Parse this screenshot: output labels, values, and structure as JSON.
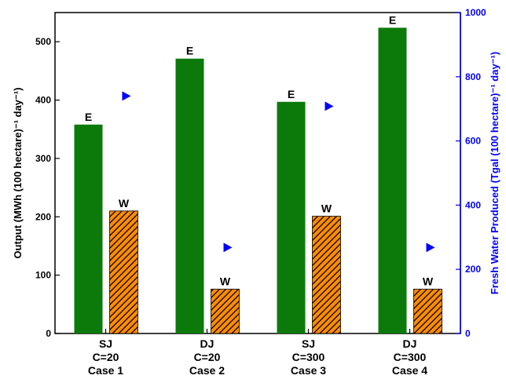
{
  "chart_data": {
    "type": "bar",
    "categories": [
      [
        "SJ",
        "C=20",
        "Case 1"
      ],
      [
        "DJ",
        "C=20",
        "Case 2"
      ],
      [
        "SJ",
        "C=300",
        "Case 3"
      ],
      [
        "DJ",
        "C=300",
        "Case 4"
      ]
    ],
    "series": [
      {
        "label": "E",
        "axis": "left",
        "color": "#0b7a0b",
        "pattern": "solid",
        "values": [
          358,
          471,
          397,
          524
        ]
      },
      {
        "label": "W",
        "axis": "left",
        "color": "#ff8c00",
        "pattern": "hatched",
        "values": [
          210,
          76,
          201,
          76
        ]
      }
    ],
    "markers": {
      "axis": "right",
      "shape": "right-pointing-triangle",
      "color": "#0000ff",
      "values": [
        740,
        268,
        708,
        268
      ]
    },
    "ylabel": "Output (MWh (100 hectare)⁻¹ day⁻¹)",
    "ylabel_right": "Fresh Water Produced (Tgal (100 hectare)⁻¹ day⁻¹)",
    "ylim": [
      0,
      550
    ],
    "ylim_right": [
      0,
      1000
    ],
    "yticks": [
      0,
      100,
      200,
      300,
      400,
      500
    ],
    "yticks_right": [
      0,
      200,
      400,
      600,
      800,
      1000
    ],
    "grid": false,
    "legend": "none"
  }
}
